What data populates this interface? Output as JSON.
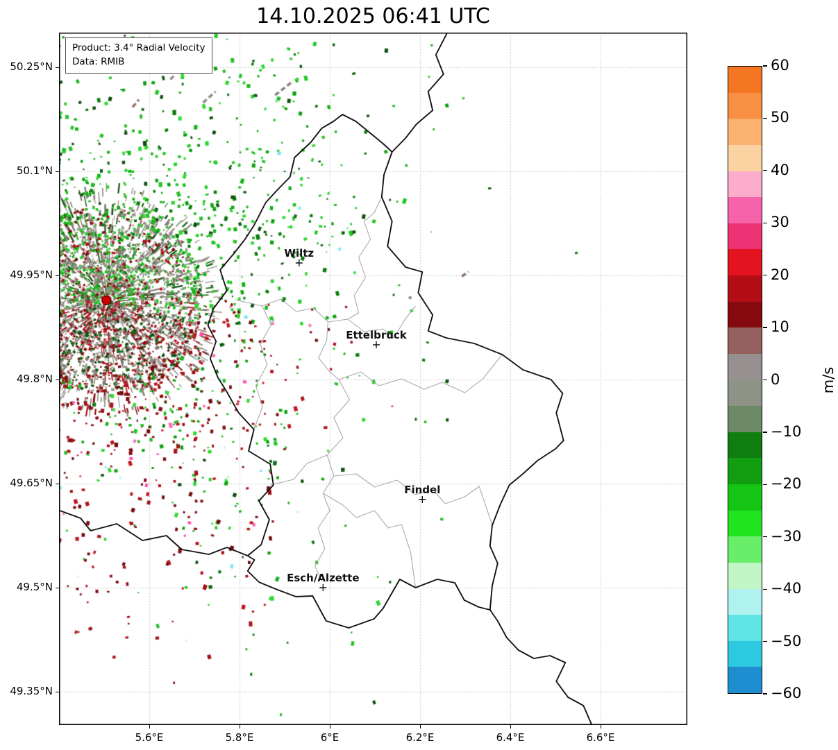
{
  "title": "14.10.2025 06:41 UTC",
  "product_box": {
    "product": "Product: 3.4° Radial Velocity",
    "data_source": "Data: RMIB"
  },
  "axes": {
    "lon_min": 5.4,
    "lon_max": 6.7923,
    "lat_min": 49.302,
    "lat_max": 50.3,
    "x_ticks": [
      {
        "lon": 5.6,
        "label": "5.6°E"
      },
      {
        "lon": 5.8,
        "label": "5.8°E"
      },
      {
        "lon": 6.0,
        "label": "6°E"
      },
      {
        "lon": 6.2,
        "label": "6.2°E"
      },
      {
        "lon": 6.4,
        "label": "6.4°E"
      },
      {
        "lon": 6.6,
        "label": "6.6°E"
      }
    ],
    "y_ticks": [
      {
        "lat": 50.25,
        "label": "50.25°N"
      },
      {
        "lat": 50.1,
        "label": "50.1°N"
      },
      {
        "lat": 49.95,
        "label": "49.95°N"
      },
      {
        "lat": 49.8,
        "label": "49.8°N"
      },
      {
        "lat": 49.65,
        "label": "49.65°N"
      },
      {
        "lat": 49.5,
        "label": "49.5°N"
      },
      {
        "lat": 49.35,
        "label": "49.35°N"
      }
    ]
  },
  "colorbar": {
    "label": "m/s",
    "min": -60,
    "max": 60,
    "ticks": [
      {
        "value": 60,
        "label": "60"
      },
      {
        "value": 50,
        "label": "50"
      },
      {
        "value": 40,
        "label": "40"
      },
      {
        "value": 30,
        "label": "30"
      },
      {
        "value": 20,
        "label": "20"
      },
      {
        "value": 10,
        "label": "10"
      },
      {
        "value": 0,
        "label": "0"
      },
      {
        "value": -10,
        "label": "−10"
      },
      {
        "value": -20,
        "label": "−20"
      },
      {
        "value": -30,
        "label": "−30"
      },
      {
        "value": -40,
        "label": "−40"
      },
      {
        "value": -50,
        "label": "−50"
      },
      {
        "value": -60,
        "label": "−60"
      }
    ],
    "bands": [
      {
        "from": 55,
        "to": 60,
        "color": "#f57622"
      },
      {
        "from": 50,
        "to": 55,
        "color": "#f88f42"
      },
      {
        "from": 45,
        "to": 50,
        "color": "#fbb271"
      },
      {
        "from": 40,
        "to": 45,
        "color": "#fdd2a2"
      },
      {
        "from": 35,
        "to": 40,
        "color": "#fbaccb"
      },
      {
        "from": 30,
        "to": 35,
        "color": "#f763ab"
      },
      {
        "from": 25,
        "to": 30,
        "color": "#ee3374"
      },
      {
        "from": 20,
        "to": 25,
        "color": "#e3141f"
      },
      {
        "from": 15,
        "to": 20,
        "color": "#b30d16"
      },
      {
        "from": 10,
        "to": 15,
        "color": "#850a10"
      },
      {
        "from": 5,
        "to": 10,
        "color": "#95605e"
      },
      {
        "from": 0,
        "to": 5,
        "color": "#969090"
      },
      {
        "from": -5,
        "to": 0,
        "color": "#8d9487"
      },
      {
        "from": -10,
        "to": -5,
        "color": "#6d8a66"
      },
      {
        "from": -15,
        "to": -10,
        "color": "#107d10"
      },
      {
        "from": -20,
        "to": -15,
        "color": "#119f11"
      },
      {
        "from": -25,
        "to": -20,
        "color": "#14c514"
      },
      {
        "from": -30,
        "to": -25,
        "color": "#22e522"
      },
      {
        "from": -35,
        "to": -30,
        "color": "#69ee69"
      },
      {
        "from": -40,
        "to": -35,
        "color": "#c2f5c6"
      },
      {
        "from": -45,
        "to": -40,
        "color": "#aff2ef"
      },
      {
        "from": -50,
        "to": -45,
        "color": "#5fe5e6"
      },
      {
        "from": -55,
        "to": -50,
        "color": "#2dc9e1"
      },
      {
        "from": -60,
        "to": -55,
        "color": "#1f8ed0"
      }
    ]
  },
  "cities": [
    {
      "name": "Wiltz",
      "lon": 5.932,
      "lat": 49.968
    },
    {
      "name": "Ettelbruck",
      "lon": 6.103,
      "lat": 49.85
    },
    {
      "name": "Findel",
      "lon": 6.205,
      "lat": 49.627
    },
    {
      "name": "Esch/Alzette",
      "lon": 5.985,
      "lat": 49.5
    }
  ],
  "radar_site": {
    "lon": 5.505,
    "lat": 49.914,
    "marker_color": "#cc0000",
    "marker_edge": "#5f0000"
  },
  "map_style": {
    "country_border_color": "#141414",
    "region_border_color": "#a9a9a9",
    "grid_color": "#bcbcbc",
    "frame_color": "#000000",
    "city_marker_color": "#111111"
  },
  "borders": {
    "countries": [
      {
        "name": "luxembourg",
        "points": [
          [
            6.138,
            50.128
          ],
          [
            6.12,
            50.095
          ],
          [
            6.115,
            50.063
          ],
          [
            6.138,
            50.028
          ],
          [
            6.128,
            49.992
          ],
          [
            6.168,
            49.962
          ],
          [
            6.205,
            49.955
          ],
          [
            6.196,
            49.925
          ],
          [
            6.228,
            49.893
          ],
          [
            6.218,
            49.87
          ],
          [
            6.258,
            49.86
          ],
          [
            6.32,
            49.852
          ],
          [
            6.382,
            49.836
          ],
          [
            6.428,
            49.814
          ],
          [
            6.49,
            49.8
          ],
          [
            6.516,
            49.78
          ],
          [
            6.502,
            49.752
          ],
          [
            6.518,
            49.712
          ],
          [
            6.5,
            49.7
          ],
          [
            6.46,
            49.683
          ],
          [
            6.428,
            49.664
          ],
          [
            6.398,
            49.648
          ],
          [
            6.378,
            49.62
          ],
          [
            6.36,
            49.59
          ],
          [
            6.355,
            49.56
          ],
          [
            6.372,
            49.535
          ],
          [
            6.36,
            49.503
          ],
          [
            6.355,
            49.468
          ],
          [
            6.33,
            49.472
          ],
          [
            6.298,
            49.482
          ],
          [
            6.277,
            49.507
          ],
          [
            6.238,
            49.512
          ],
          [
            6.19,
            49.5
          ],
          [
            6.155,
            49.512
          ],
          [
            6.118,
            49.47
          ],
          [
            6.098,
            49.455
          ],
          [
            6.042,
            49.442
          ],
          [
            5.992,
            49.452
          ],
          [
            5.962,
            49.488
          ],
          [
            5.925,
            49.487
          ],
          [
            5.88,
            49.498
          ],
          [
            5.843,
            49.508
          ],
          [
            5.818,
            49.524
          ],
          [
            5.833,
            49.54
          ],
          [
            5.818,
            49.546
          ],
          [
            5.848,
            49.562
          ],
          [
            5.866,
            49.598
          ],
          [
            5.843,
            49.625
          ],
          [
            5.875,
            49.648
          ],
          [
            5.868,
            49.678
          ],
          [
            5.82,
            49.697
          ],
          [
            5.832,
            49.728
          ],
          [
            5.798,
            49.752
          ],
          [
            5.772,
            49.782
          ],
          [
            5.752,
            49.803
          ],
          [
            5.735,
            49.83
          ],
          [
            5.748,
            49.855
          ],
          [
            5.73,
            49.878
          ],
          [
            5.742,
            49.902
          ],
          [
            5.772,
            49.928
          ],
          [
            5.757,
            49.958
          ],
          [
            5.788,
            49.982
          ],
          [
            5.812,
            50.002
          ],
          [
            5.832,
            50.022
          ],
          [
            5.858,
            50.055
          ],
          [
            5.882,
            50.072
          ],
          [
            5.912,
            50.092
          ],
          [
            5.922,
            50.12
          ],
          [
            5.958,
            50.142
          ],
          [
            5.982,
            50.162
          ],
          [
            6.008,
            50.172
          ],
          [
            6.028,
            50.182
          ],
          [
            6.058,
            50.172
          ],
          [
            6.09,
            50.155
          ],
          [
            6.118,
            50.14
          ],
          [
            6.138,
            50.128
          ]
        ]
      },
      {
        "name": "belgium-germany",
        "points": [
          [
            6.262,
            50.302
          ],
          [
            6.235,
            50.268
          ],
          [
            6.252,
            50.24
          ],
          [
            6.218,
            50.215
          ],
          [
            6.228,
            50.188
          ],
          [
            6.192,
            50.168
          ],
          [
            6.168,
            50.148
          ],
          [
            6.138,
            50.128
          ]
        ]
      },
      {
        "name": "france-belgium",
        "points": [
          [
            5.398,
            49.612
          ],
          [
            5.448,
            49.6
          ],
          [
            5.47,
            49.582
          ],
          [
            5.528,
            49.592
          ],
          [
            5.585,
            49.568
          ],
          [
            5.638,
            49.575
          ],
          [
            5.672,
            49.555
          ],
          [
            5.732,
            49.548
          ],
          [
            5.772,
            49.558
          ],
          [
            5.818,
            49.546
          ]
        ]
      },
      {
        "name": "france-germany",
        "points": [
          [
            6.355,
            49.468
          ],
          [
            6.372,
            49.452
          ],
          [
            6.392,
            49.428
          ],
          [
            6.418,
            49.41
          ],
          [
            6.452,
            49.398
          ],
          [
            6.488,
            49.402
          ],
          [
            6.522,
            49.392
          ],
          [
            6.502,
            49.365
          ],
          [
            6.528,
            49.342
          ],
          [
            6.562,
            49.33
          ],
          [
            6.582,
            49.3
          ]
        ]
      }
    ],
    "regions": [
      {
        "name": "r1",
        "points": [
          [
            5.79,
            49.915
          ],
          [
            5.85,
            49.906
          ],
          [
            5.892,
            49.916
          ],
          [
            5.926,
            49.898
          ],
          [
            5.964,
            49.903
          ],
          [
            5.996,
            49.883
          ],
          [
            6.04,
            49.887
          ],
          [
            6.076,
            49.869
          ],
          [
            6.118,
            49.873
          ],
          [
            6.142,
            49.86
          ],
          [
            6.166,
            49.886
          ],
          [
            6.19,
            49.906
          ]
        ]
      },
      {
        "name": "r2",
        "points": [
          [
            6.115,
            50.063
          ],
          [
            6.098,
            50.04
          ],
          [
            6.076,
            50.028
          ],
          [
            6.09,
            50.002
          ],
          [
            6.064,
            49.976
          ],
          [
            6.079,
            49.947
          ],
          [
            6.054,
            49.921
          ],
          [
            6.064,
            49.896
          ],
          [
            6.04,
            49.887
          ]
        ]
      },
      {
        "name": "r3",
        "points": [
          [
            5.996,
            49.883
          ],
          [
            5.993,
            49.856
          ],
          [
            5.975,
            49.831
          ],
          [
            6.0,
            49.811
          ],
          [
            6.02,
            49.8
          ],
          [
            6.044,
            49.771
          ],
          [
            6.009,
            49.745
          ],
          [
            6.029,
            49.716
          ],
          [
            5.994,
            49.691
          ],
          [
            6.009,
            49.661
          ],
          [
            5.985,
            49.636
          ],
          [
            6.0,
            49.611
          ],
          [
            5.974,
            49.586
          ],
          [
            5.989,
            49.556
          ],
          [
            5.967,
            49.531
          ],
          [
            5.983,
            49.509
          ]
        ]
      },
      {
        "name": "r4",
        "points": [
          [
            5.868,
            49.648
          ],
          [
            5.92,
            49.656
          ],
          [
            5.949,
            49.679
          ],
          [
            5.994,
            49.691
          ]
        ]
      },
      {
        "name": "r5",
        "points": [
          [
            6.009,
            49.661
          ],
          [
            6.059,
            49.664
          ],
          [
            6.099,
            49.645
          ],
          [
            6.149,
            49.655
          ],
          [
            6.189,
            49.634
          ],
          [
            6.229,
            49.641
          ],
          [
            6.256,
            49.621
          ],
          [
            6.299,
            49.631
          ],
          [
            6.331,
            49.646
          ],
          [
            6.36,
            49.59
          ]
        ]
      },
      {
        "name": "r6",
        "points": [
          [
            6.02,
            49.8
          ],
          [
            6.069,
            49.811
          ],
          [
            6.109,
            49.791
          ],
          [
            6.159,
            49.801
          ],
          [
            6.209,
            49.786
          ],
          [
            6.249,
            49.796
          ],
          [
            6.299,
            49.781
          ],
          [
            6.339,
            49.801
          ],
          [
            6.382,
            49.836
          ]
        ]
      },
      {
        "name": "r7",
        "points": [
          [
            5.985,
            49.636
          ],
          [
            6.029,
            49.619
          ],
          [
            6.059,
            49.601
          ],
          [
            6.099,
            49.611
          ],
          [
            6.129,
            49.586
          ],
          [
            6.159,
            49.591
          ],
          [
            6.179,
            49.551
          ],
          [
            6.19,
            49.5
          ]
        ]
      },
      {
        "name": "r8",
        "points": [
          [
            5.85,
            49.906
          ],
          [
            5.87,
            49.879
          ],
          [
            5.846,
            49.851
          ],
          [
            5.861,
            49.821
          ],
          [
            5.836,
            49.791
          ],
          [
            5.851,
            49.761
          ],
          [
            5.832,
            49.728
          ]
        ]
      }
    ]
  },
  "radar_field": {
    "description": "Doppler radial velocity echoes around the Wideumont (RMIB) radar: negative velocities (greens, toward radar) scattered N/NE of the site, positive velocities (dark reds, away) S/SW, gray near-zero ground clutter around the radar, a few pink/cyan outliers and gray interference dashes",
    "palettes": {
      "gray": [
        "#8f8982",
        "#9a938b",
        "#837d75",
        "#a59d95",
        "#7b766f",
        "#8c9181",
        "#97887f"
      ],
      "green": [
        "#18b418",
        "#23c923",
        "#0ea30e",
        "#31d831",
        "#0b7d0b",
        "#2abf2a"
      ],
      "green_dark": [
        "#0a5c0a",
        "#11520f",
        "#1d6b1d",
        "#0d4f14"
      ],
      "red": [
        "#9c1016",
        "#b0131c",
        "#870c11",
        "#c01824",
        "#74090d",
        "#a3121e"
      ],
      "outlier": [
        "#f973b4",
        "#ff4fa8",
        "#7de9ea",
        "#aef3f0",
        "#d8f8d8"
      ]
    },
    "dashes": [
      {
        "lon": 5.733,
        "lat": 50.207,
        "angle_deg": -42,
        "len": 24,
        "color": "#8f8982"
      },
      {
        "lon": 5.897,
        "lat": 50.219,
        "angle_deg": -38,
        "len": 30,
        "color": "#8a847c"
      },
      {
        "lon": 5.57,
        "lat": 50.198,
        "angle_deg": -50,
        "len": 14,
        "color": "#9a6a6c"
      },
      {
        "lon": 5.652,
        "lat": 50.236,
        "angle_deg": -45,
        "len": 10,
        "color": "#948e86"
      },
      {
        "lon": 6.3,
        "lat": 49.952,
        "angle_deg": -35,
        "len": 12,
        "color": "#8f6d72"
      }
    ],
    "echoes": [
      {
        "lon": 5.888,
        "lat": 50.126,
        "color": "#7de9ea",
        "size": 5
      },
      {
        "lon": 5.933,
        "lat": 50.047,
        "color": "#9ef0f2",
        "size": 5
      },
      {
        "lon": 6.022,
        "lat": 49.988,
        "color": "#7de9ea",
        "size": 4
      },
      {
        "lon": 6.098,
        "lat": 50.028,
        "color": "#23c923",
        "size": 5
      },
      {
        "lon": 6.132,
        "lat": 49.867,
        "color": "#0a5c0a",
        "size": 5
      },
      {
        "lon": 6.075,
        "lat": 49.742,
        "color": "#31d831",
        "size": 5
      },
      {
        "lon": 5.956,
        "lat": 49.878,
        "color": "#ff7ab8",
        "size": 4
      },
      {
        "lon": 6.178,
        "lat": 49.918,
        "color": "#8f8982",
        "size": 4
      },
      {
        "lon": 6.208,
        "lat": 49.828,
        "color": "#156e15",
        "size": 4
      },
      {
        "lon": 5.7,
        "lat": 50.258,
        "color": "#23c923",
        "size": 4
      }
    ]
  }
}
